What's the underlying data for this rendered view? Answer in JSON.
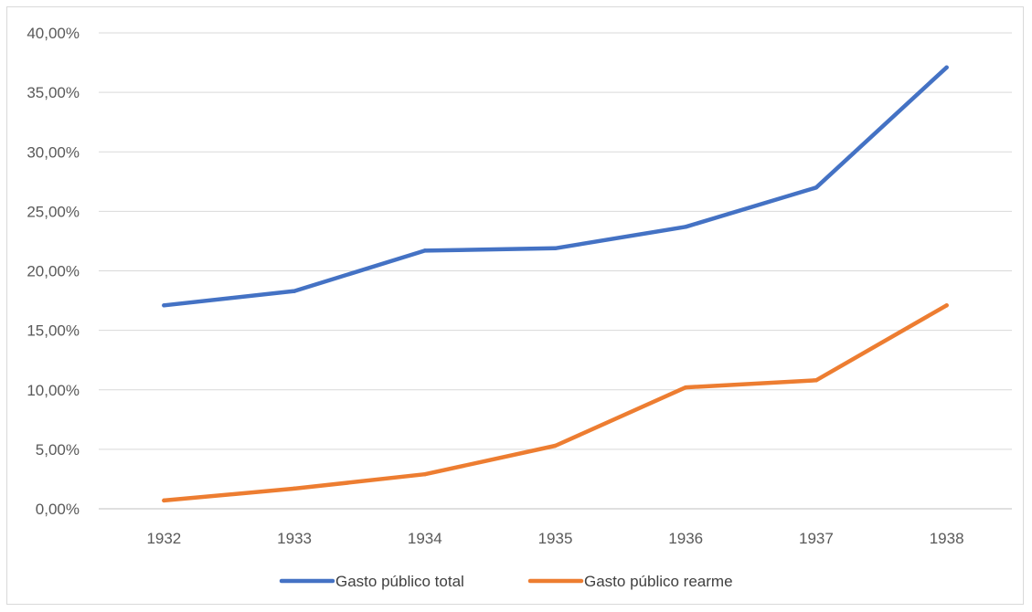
{
  "chart_data": {
    "type": "line",
    "title": "",
    "xlabel": "",
    "ylabel": "",
    "categories": [
      "1932",
      "1933",
      "1934",
      "1935",
      "1936",
      "1937",
      "1938"
    ],
    "ylim": [
      0,
      40
    ],
    "yticks": [
      0,
      5,
      10,
      15,
      20,
      25,
      30,
      35,
      40
    ],
    "ytick_labels": [
      "0,00%",
      "5,00%",
      "10,00%",
      "15,00%",
      "20,00%",
      "25,00%",
      "30,00%",
      "35,00%",
      "40,00%"
    ],
    "grid": true,
    "legend_position": "bottom",
    "series": [
      {
        "name": "Gasto público total",
        "color": "#4472C4",
        "values": [
          17.1,
          18.3,
          21.7,
          21.9,
          23.7,
          27.0,
          37.1
        ]
      },
      {
        "name": "Gasto público rearme",
        "color": "#ED7D31",
        "values": [
          0.7,
          1.7,
          2.9,
          5.3,
          10.2,
          10.8,
          17.1
        ]
      }
    ]
  }
}
